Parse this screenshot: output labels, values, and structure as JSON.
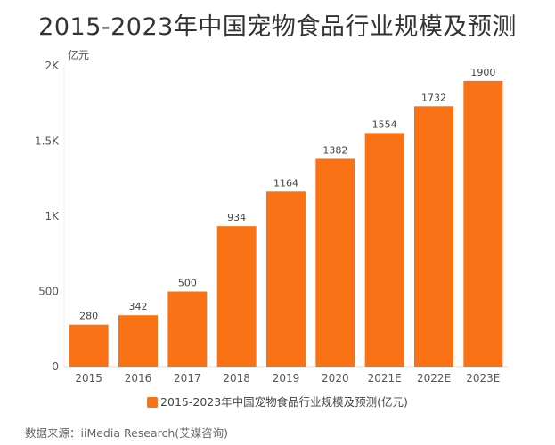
{
  "chart_data": {
    "type": "bar",
    "title": "2015-2023年中国宠物食品行业规模及预测",
    "categories": [
      "2015",
      "2016",
      "2017",
      "2018",
      "2019",
      "2020",
      "2021E",
      "2022E",
      "2023E"
    ],
    "series": [
      {
        "name": "2015-2023年中国宠物食品行业规模及预测(亿元)",
        "values": [
          280,
          342,
          500,
          934,
          1164,
          1382,
          1554,
          1732,
          1900
        ],
        "color": "#F97316"
      }
    ],
    "ylabel": "亿元",
    "ylim": [
      0,
      2000
    ],
    "yticks": [
      {
        "value": 0,
        "label": "0"
      },
      {
        "value": 500,
        "label": "500"
      },
      {
        "value": 1000,
        "label": "1K"
      },
      {
        "value": 1500,
        "label": "1.5K"
      },
      {
        "value": 2000,
        "label": "2K"
      }
    ],
    "grid": false,
    "legend": "bottom"
  },
  "source": "数据来源：iiMedia Research(艾媒咨询)"
}
